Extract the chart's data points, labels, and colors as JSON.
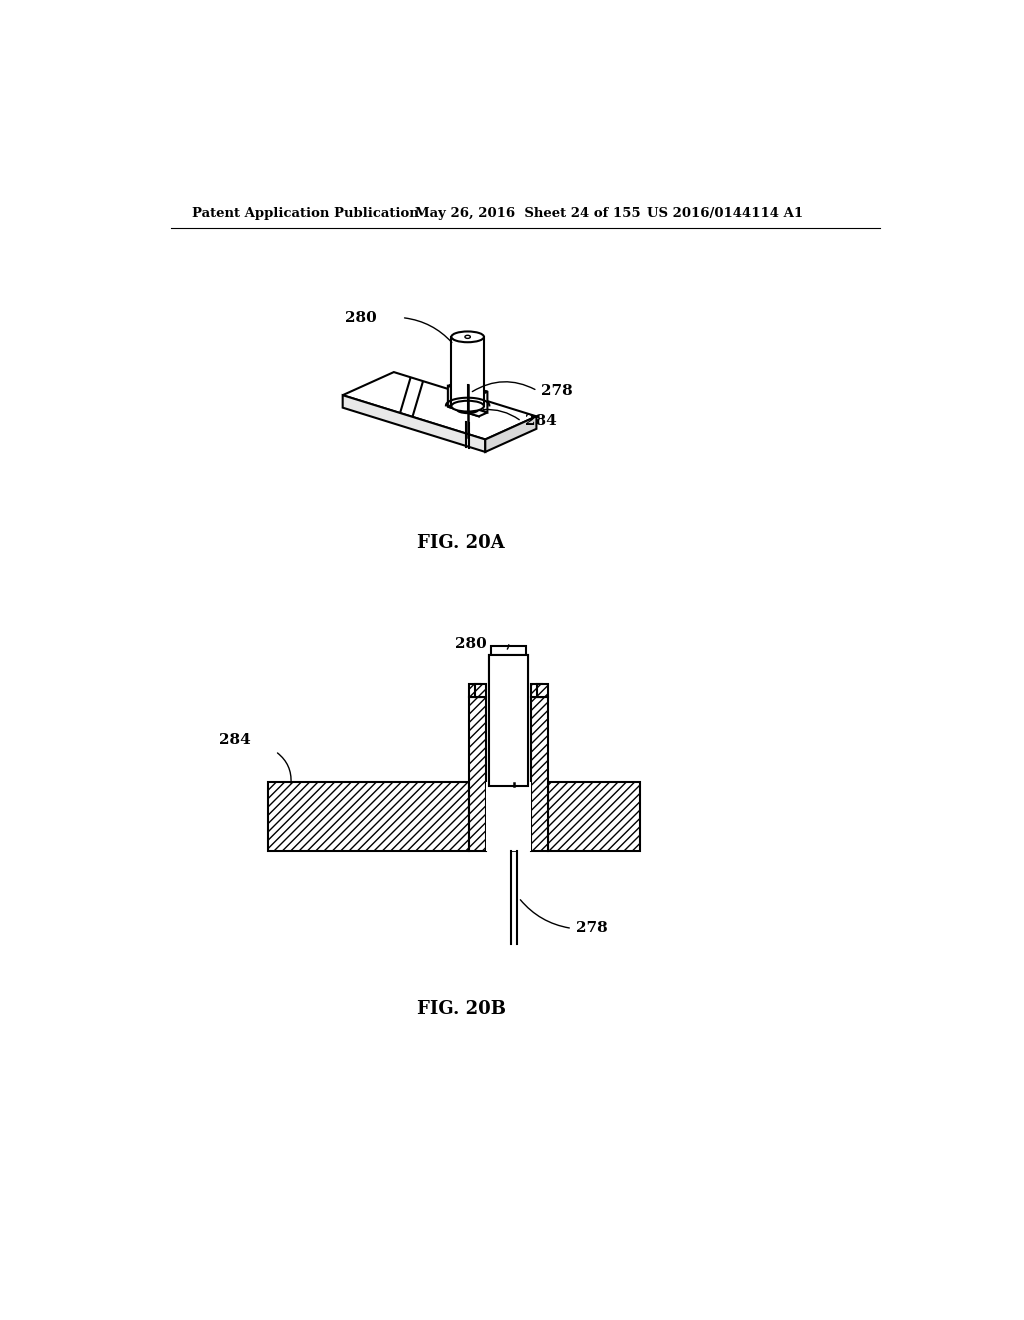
{
  "header_left": "Patent Application Publication",
  "header_middle": "May 26, 2016  Sheet 24 of 155",
  "header_right": "US 2016/0144114 A1",
  "fig_a_label": "FIG. 20A",
  "fig_b_label": "FIG. 20B",
  "label_280": "280",
  "label_278": "278",
  "label_284": "284",
  "bg_color": "#ffffff",
  "line_color": "#000000"
}
